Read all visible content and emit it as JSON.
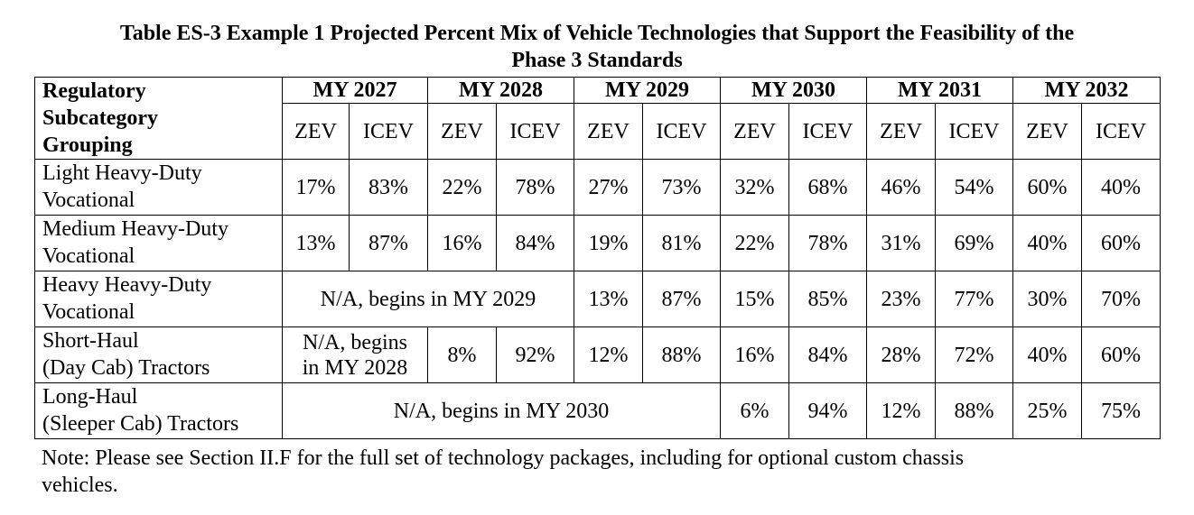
{
  "title": "Table ES-3 Example 1 Projected Percent Mix of Vehicle Technologies that Support the Feasibility of the\nPhase 3 Standards",
  "table": {
    "header": {
      "label": "Regulatory\nSubcategory\nGrouping",
      "years": [
        {
          "label": "MY 2027",
          "columns": [
            "ZEV",
            "ICEV"
          ]
        },
        {
          "label": "MY 2028",
          "columns": [
            "ZEV",
            "ICEV"
          ]
        },
        {
          "label": "MY 2029",
          "columns": [
            "ZEV",
            "ICEV"
          ]
        },
        {
          "label": "MY 2030",
          "columns": [
            "ZEV",
            "ICEV"
          ]
        },
        {
          "label": "MY 2031",
          "columns": [
            "ZEV",
            "ICEV"
          ]
        },
        {
          "label": "MY 2032",
          "columns": [
            "ZEV",
            "ICEV"
          ]
        }
      ]
    },
    "rows": [
      {
        "label": "Light Heavy-Duty\nVocational",
        "cells": [
          "17%",
          "83%",
          "22%",
          "78%",
          "27%",
          "73%",
          "32%",
          "68%",
          "46%",
          "54%",
          "60%",
          "40%"
        ]
      },
      {
        "label": "Medium Heavy-Duty\nVocational",
        "cells": [
          "13%",
          "87%",
          "16%",
          "84%",
          "19%",
          "81%",
          "22%",
          "78%",
          "31%",
          "69%",
          "40%",
          "60%"
        ]
      },
      {
        "label": "Heavy Heavy-Duty\nVocational",
        "cells": [
          "N/A, begins in MY 2029",
          "13%",
          "87%",
          "15%",
          "85%",
          "23%",
          "77%",
          "30%",
          "70%"
        ]
      },
      {
        "label": "Short-Haul\n(Day Cab) Tractors",
        "cells": [
          "N/A, begins\nin MY 2028",
          "8%",
          "92%",
          "12%",
          "88%",
          "16%",
          "84%",
          "28%",
          "72%",
          "40%",
          "60%"
        ]
      },
      {
        "label": "Long-Haul\n(Sleeper Cab) Tractors",
        "cells": [
          "N/A, begins in MY 2030",
          "6%",
          "94%",
          "12%",
          "88%",
          "25%",
          "75%"
        ]
      }
    ]
  },
  "note": "Note: Please see Section II.F for the full set of technology packages, including for optional custom chassis\nvehicles."
}
